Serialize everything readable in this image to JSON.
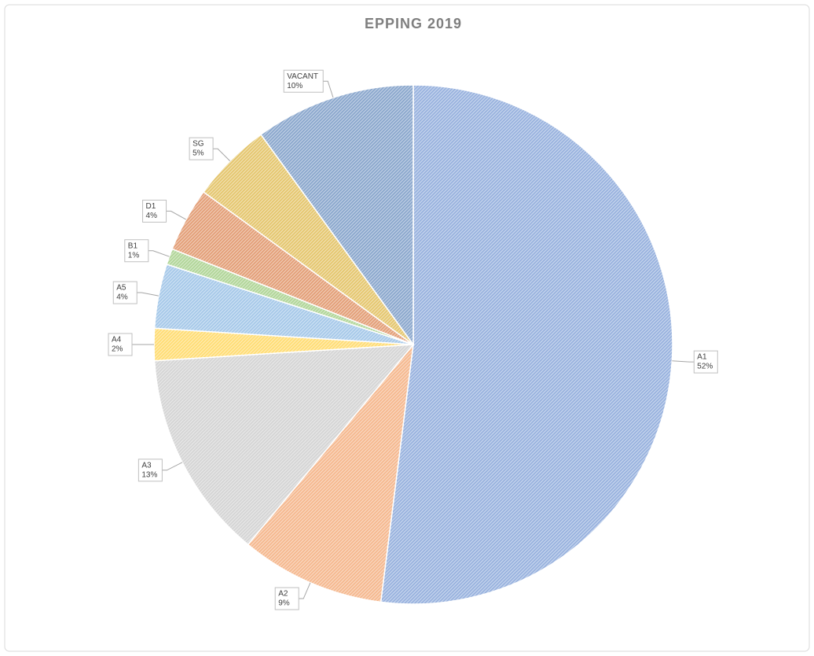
{
  "chart_data": {
    "type": "pie",
    "title": "EPPING 2019",
    "categories": [
      "A1",
      "A2",
      "A3",
      "A4",
      "A5",
      "B1",
      "D1",
      "SG",
      "VACANT"
    ],
    "values": [
      52,
      9,
      13,
      2,
      4,
      1,
      4,
      5,
      10
    ],
    "value_labels": [
      "52%",
      "9%",
      "13%",
      "2%",
      "4%",
      "1%",
      "4%",
      "5%",
      "10%"
    ],
    "colors": [
      "#8eaadb",
      "#f4b183",
      "#d0d0d0",
      "#ffd966",
      "#9dc3e6",
      "#a9d18e",
      "#e0956a",
      "#e2c060",
      "#7f9fc8"
    ]
  }
}
